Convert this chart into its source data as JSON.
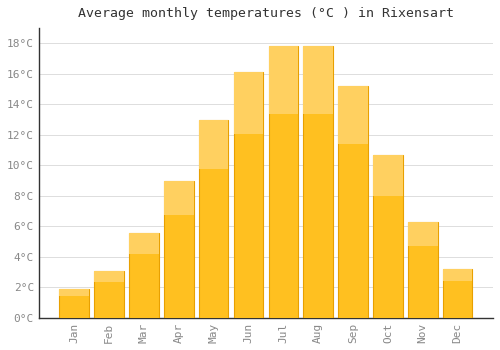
{
  "title": "Average monthly temperatures (°C ) in Rixensart",
  "months": [
    "Jan",
    "Feb",
    "Mar",
    "Apr",
    "May",
    "Jun",
    "Jul",
    "Aug",
    "Sep",
    "Oct",
    "Nov",
    "Dec"
  ],
  "temperatures": [
    1.9,
    3.1,
    5.6,
    9.0,
    13.0,
    16.1,
    17.8,
    17.8,
    15.2,
    10.7,
    6.3,
    3.2
  ],
  "bar_color_main": "#FFC020",
  "bar_color_edge": "#E8A000",
  "background_color": "#FFFFFF",
  "plot_bg_color": "#FFFFFF",
  "grid_color": "#DDDDDD",
  "ylim": [
    0,
    19
  ],
  "yticks": [
    0,
    2,
    4,
    6,
    8,
    10,
    12,
    14,
    16,
    18
  ],
  "title_fontsize": 9.5,
  "tick_fontsize": 8,
  "title_color": "#333333",
  "tick_color": "#888888",
  "bar_width": 0.85
}
